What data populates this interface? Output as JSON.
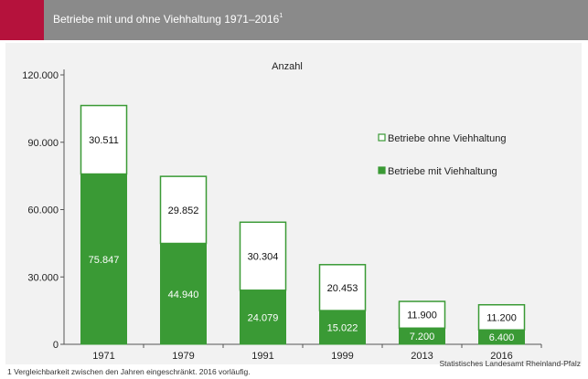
{
  "header": {
    "title": "Betriebe mit und ohne Viehhaltung 1971–2016",
    "title_sup": "1"
  },
  "footnote": "1 Vergleichbarkeit zwischen den Jahren eingeschränkt. 2016 vorläufig.",
  "source": "Statistisches Landesamt Rheinland-Pfalz",
  "colors": {
    "header_bg": "#8a8a8a",
    "accent": "#b5123c",
    "green": "#3a9a35",
    "panel_bg": "#f2f2f2"
  },
  "chart_data": {
    "type": "bar",
    "stacked": true,
    "title": "Anzahl",
    "categories": [
      "1971",
      "1979",
      "1991",
      "1999",
      "2013",
      "2016"
    ],
    "series": [
      {
        "name": "Betriebe mit Viehhaltung",
        "values": [
          75847,
          44940,
          24079,
          15022,
          7200,
          6400
        ],
        "labels": [
          "75.847",
          "44.940",
          "24.079",
          "15.022",
          "7.200",
          "6.400"
        ],
        "color": "#3a9a35"
      },
      {
        "name": "Betriebe ohne Viehhaltung",
        "values": [
          30511,
          29852,
          30304,
          20453,
          11900,
          11200
        ],
        "labels": [
          "30.511",
          "29.852",
          "30.304",
          "20.453",
          "11.900",
          "11.200"
        ],
        "color": "#ffffff"
      }
    ],
    "ylim": [
      0,
      120000
    ],
    "yticks": [
      0,
      30000,
      60000,
      90000,
      120000
    ],
    "ytick_labels": [
      "0",
      "30.000",
      "60.000",
      "90.000",
      "120.000"
    ],
    "legend": [
      {
        "label": "Betriebe ohne Viehhaltung",
        "series": 1
      },
      {
        "label": "Betriebe mit Viehhaltung",
        "series": 0
      }
    ],
    "legend_position": "right"
  }
}
